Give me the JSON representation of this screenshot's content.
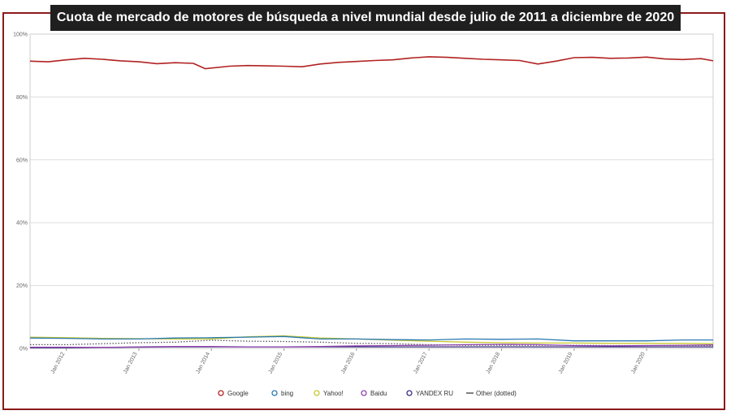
{
  "chart_data": {
    "type": "line",
    "title": "Cuota de mercado de motores de búsqueda a nivel mundial desde julio de 2011 a diciembre de 2020",
    "xlabel": "",
    "ylabel": "",
    "x_range": [
      "2011-07",
      "2020-12"
    ],
    "ylim": [
      0,
      100
    ],
    "y_ticks": [
      "0%",
      "20%",
      "40%",
      "60%",
      "80%",
      "100%"
    ],
    "x_ticks": [
      "Jan 2012",
      "Jan 2013",
      "Jan 2014",
      "Jan 2015",
      "Jan 2016",
      "Jan 2017",
      "Jan 2018",
      "Jan 2019",
      "Jan 2020"
    ],
    "grid": "horizontal",
    "legend_position": "bottom",
    "series": [
      {
        "name": "Google",
        "color": "#b22222",
        "style": "solid",
        "x": [
          "2011-07",
          "2011-10",
          "2012-01",
          "2012-04",
          "2012-07",
          "2012-10",
          "2013-01",
          "2013-04",
          "2013-07",
          "2013-10",
          "2013-12",
          "2014-04",
          "2014-07",
          "2014-10",
          "2015-01",
          "2015-04",
          "2015-07",
          "2015-10",
          "2016-01",
          "2016-04",
          "2016-07",
          "2016-10",
          "2017-01",
          "2017-04",
          "2017-07",
          "2017-10",
          "2018-01",
          "2018-04",
          "2018-07",
          "2018-10",
          "2019-01",
          "2019-04",
          "2019-07",
          "2019-10",
          "2020-01",
          "2020-04",
          "2020-07",
          "2020-10",
          "2020-12"
        ],
        "values": [
          91.4,
          91.2,
          91.8,
          92.3,
          92.0,
          91.5,
          91.2,
          90.6,
          90.9,
          90.7,
          89.0,
          89.8,
          90.0,
          89.9,
          89.8,
          89.6,
          90.5,
          91.0,
          91.3,
          91.6,
          91.8,
          92.4,
          92.8,
          92.6,
          92.3,
          92.0,
          91.8,
          91.6,
          90.5,
          91.4,
          92.5,
          92.6,
          92.3,
          92.4,
          92.7,
          92.1,
          91.9,
          92.2,
          91.5
        ]
      },
      {
        "name": "bing",
        "color": "#2a7ab0",
        "style": "solid",
        "x": [
          "2011-07",
          "2012-01",
          "2012-07",
          "2013-01",
          "2013-07",
          "2014-01",
          "2014-07",
          "2015-01",
          "2015-07",
          "2016-01",
          "2016-07",
          "2017-01",
          "2017-07",
          "2018-01",
          "2018-07",
          "2019-01",
          "2019-07",
          "2020-01",
          "2020-07",
          "2020-12"
        ],
        "values": [
          3.3,
          3.2,
          3.0,
          3.0,
          3.3,
          3.4,
          3.6,
          3.8,
          3.0,
          3.0,
          2.8,
          2.7,
          3.0,
          2.9,
          3.0,
          2.4,
          2.4,
          2.4,
          2.7,
          2.7
        ]
      },
      {
        "name": "Yahoo!",
        "color": "#c8c830",
        "style": "solid",
        "x": [
          "2011-07",
          "2012-01",
          "2012-07",
          "2013-01",
          "2013-07",
          "2014-01",
          "2014-07",
          "2015-01",
          "2015-07",
          "2016-01",
          "2016-07",
          "2017-01",
          "2017-07",
          "2018-01",
          "2018-07",
          "2019-01",
          "2019-07",
          "2020-01",
          "2020-07",
          "2020-12"
        ],
        "values": [
          3.6,
          3.4,
          3.2,
          3.1,
          3.0,
          3.0,
          3.7,
          4.0,
          3.3,
          3.0,
          2.6,
          2.3,
          2.0,
          1.8,
          1.7,
          1.7,
          1.6,
          1.6,
          1.6,
          1.5
        ]
      },
      {
        "name": "Baidu",
        "color": "#8e44ad",
        "style": "solid",
        "x": [
          "2011-07",
          "2012-01",
          "2012-07",
          "2013-01",
          "2013-07",
          "2014-01",
          "2014-07",
          "2015-01",
          "2015-07",
          "2016-01",
          "2016-07",
          "2017-01",
          "2017-07",
          "2018-01",
          "2018-07",
          "2019-01",
          "2019-07",
          "2020-01",
          "2020-07",
          "2020-12"
        ],
        "values": [
          0.4,
          0.4,
          0.3,
          0.5,
          0.6,
          0.6,
          0.5,
          0.5,
          0.6,
          0.8,
          0.9,
          1.0,
          1.2,
          1.3,
          1.2,
          0.9,
          0.8,
          0.9,
          1.0,
          1.1
        ]
      },
      {
        "name": "YANDEX RU",
        "color": "#3b2e7e",
        "style": "solid",
        "x": [
          "2011-07",
          "2012-01",
          "2012-07",
          "2013-01",
          "2013-07",
          "2014-01",
          "2014-07",
          "2015-01",
          "2015-07",
          "2016-01",
          "2016-07",
          "2017-01",
          "2017-07",
          "2018-01",
          "2018-07",
          "2019-01",
          "2019-07",
          "2020-01",
          "2020-07",
          "2020-12"
        ],
        "values": [
          0.2,
          0.2,
          0.3,
          0.4,
          0.5,
          0.5,
          0.5,
          0.5,
          0.5,
          0.5,
          0.5,
          0.5,
          0.5,
          0.5,
          0.5,
          0.5,
          0.5,
          0.5,
          0.5,
          0.5
        ]
      },
      {
        "name": "Other (dotted)",
        "color": "#555555",
        "style": "dotted",
        "x": [
          "2011-07",
          "2012-01",
          "2012-07",
          "2013-01",
          "2013-07",
          "2014-01",
          "2014-07",
          "2015-01",
          "2015-07",
          "2016-01",
          "2016-07",
          "2017-01",
          "2017-07",
          "2018-01",
          "2018-07",
          "2019-01",
          "2019-07",
          "2020-01",
          "2020-07",
          "2020-12"
        ],
        "values": [
          1.2,
          1.2,
          1.5,
          1.8,
          2.0,
          2.6,
          2.3,
          2.2,
          2.0,
          1.6,
          1.5,
          1.2,
          1.0,
          1.0,
          1.0,
          1.0,
          0.9,
          0.9,
          0.9,
          0.9
        ]
      }
    ]
  }
}
